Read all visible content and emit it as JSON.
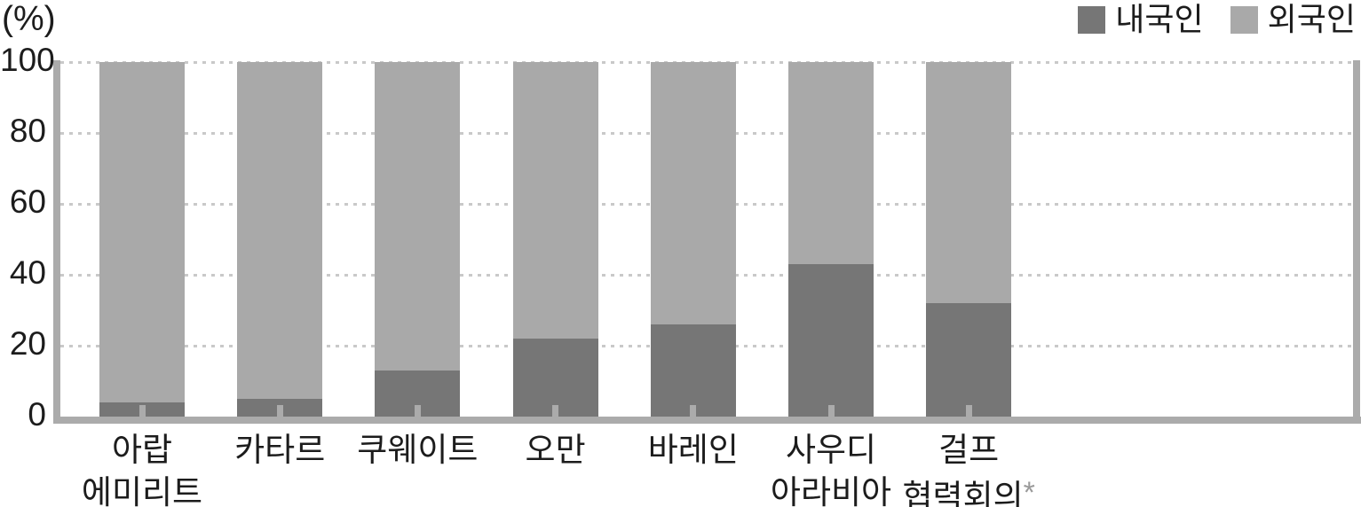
{
  "chart_data": {
    "type": "bar",
    "stacked": true,
    "title": "",
    "unit_label": "(%)",
    "categories": [
      "아랍 에미리트",
      "카타르",
      "쿠웨이트",
      "오만",
      "바레인",
      "사우디 아라비아",
      "걸프 협력회의*"
    ],
    "categories_display": [
      "아랍\n에미리트",
      "카타르",
      "쿠웨이트",
      "오만",
      "바레인",
      "사우디\n아라비아",
      "걸프\n협력회의*"
    ],
    "series": [
      {
        "name": "내국인",
        "color": "#767676",
        "values": [
          4,
          5,
          13,
          22,
          26,
          43,
          32
        ]
      },
      {
        "name": "외국인",
        "color": "#a9a9a9",
        "values": [
          96,
          95,
          87,
          78,
          74,
          57,
          68
        ]
      }
    ],
    "ylim": [
      0,
      100
    ],
    "yticks": [
      100,
      80,
      60,
      40,
      20,
      0
    ],
    "grid": "horizontal-dotted",
    "legend_position": "top-right",
    "footnote_marker": "*"
  },
  "colors": {
    "series_domestic": "#767676",
    "series_foreign": "#a9a9a9",
    "axis_frame": "#ababab",
    "gridline": "#c9c9c9",
    "text": "#1c1c1c",
    "footnote_marker": "#9a9a9a",
    "background": "#ffffff"
  }
}
